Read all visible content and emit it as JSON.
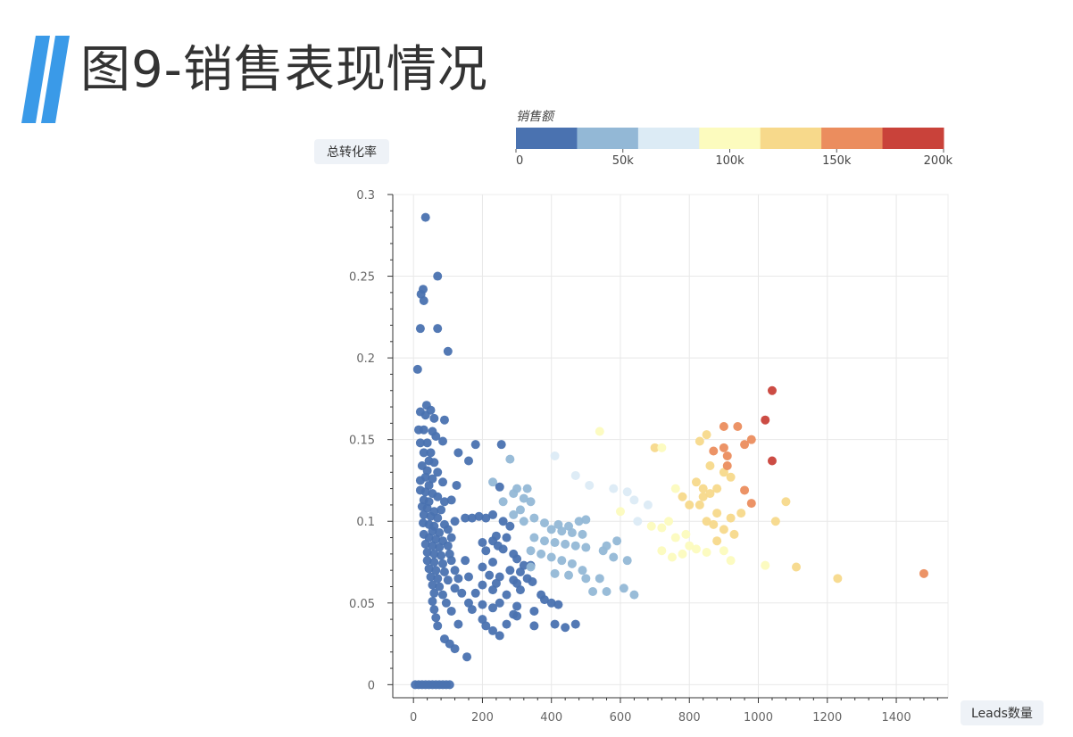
{
  "page": {
    "title": "图9-销售表现情况"
  },
  "chart_data": {
    "type": "scatter",
    "title": "图9-销售表现情况",
    "xlabel": "Leads数量",
    "ylabel": "总转化率",
    "xlim": [
      -60,
      1550
    ],
    "ylim": [
      -0.008,
      0.3
    ],
    "xticks": [
      0,
      200,
      400,
      600,
      800,
      1000,
      1200,
      1400
    ],
    "yticks": [
      0,
      0.05,
      0.1,
      0.15,
      0.2,
      0.25,
      0.3
    ],
    "ytick_labels": [
      "0",
      "0.05",
      "0.1",
      "0.15",
      "0.2",
      "0.25",
      "0.3"
    ],
    "grid": true,
    "colorbar": {
      "title": "销售额",
      "range": [
        0,
        200000
      ],
      "tick_values": [
        0,
        50000,
        100000,
        150000,
        200000
      ],
      "tick_labels": [
        "0",
        "50k",
        "100k",
        "150k",
        "200k"
      ],
      "colors": [
        "#4a72b0",
        "#93b8d6",
        "#dcebf5",
        "#fcfbbe",
        "#f7d98b",
        "#eb8d5e",
        "#c9423a"
      ]
    },
    "points": [
      [
        35,
        0.286
      ],
      [
        70,
        0.25
      ],
      [
        28,
        0.242
      ],
      [
        22,
        0.239
      ],
      [
        30,
        0.235
      ],
      [
        20,
        0.218
      ],
      [
        70,
        0.218
      ],
      [
        100,
        0.204
      ],
      [
        12,
        0.193
      ],
      [
        38,
        0.171
      ],
      [
        50,
        0.168
      ],
      [
        20,
        0.167
      ],
      [
        35,
        0.165
      ],
      [
        60,
        0.163
      ],
      [
        90,
        0.162
      ],
      [
        15,
        0.156
      ],
      [
        30,
        0.156
      ],
      [
        55,
        0.155
      ],
      [
        65,
        0.152
      ],
      [
        20,
        0.148
      ],
      [
        40,
        0.148
      ],
      [
        85,
        0.149
      ],
      [
        180,
        0.147
      ],
      [
        30,
        0.142
      ],
      [
        50,
        0.142
      ],
      [
        130,
        0.142
      ],
      [
        45,
        0.137
      ],
      [
        60,
        0.136
      ],
      [
        160,
        0.137
      ],
      [
        25,
        0.134
      ],
      [
        40,
        0.131
      ],
      [
        70,
        0.13
      ],
      [
        35,
        0.127
      ],
      [
        55,
        0.126
      ],
      [
        20,
        0.125
      ],
      [
        45,
        0.122
      ],
      [
        85,
        0.124
      ],
      [
        125,
        0.122
      ],
      [
        20,
        0.119
      ],
      [
        35,
        0.118
      ],
      [
        55,
        0.117
      ],
      [
        70,
        0.115
      ],
      [
        30,
        0.113
      ],
      [
        45,
        0.112
      ],
      [
        90,
        0.112
      ],
      [
        110,
        0.113
      ],
      [
        25,
        0.109
      ],
      [
        40,
        0.108
      ],
      [
        60,
        0.106
      ],
      [
        80,
        0.107
      ],
      [
        30,
        0.104
      ],
      [
        50,
        0.103
      ],
      [
        70,
        0.102
      ],
      [
        150,
        0.102
      ],
      [
        170,
        0.102
      ],
      [
        190,
        0.103
      ],
      [
        210,
        0.102
      ],
      [
        230,
        0.104
      ],
      [
        28,
        0.099
      ],
      [
        45,
        0.098
      ],
      [
        60,
        0.097
      ],
      [
        90,
        0.098
      ],
      [
        120,
        0.1
      ],
      [
        260,
        0.1
      ],
      [
        280,
        0.097
      ],
      [
        55,
        0.094
      ],
      [
        75,
        0.093
      ],
      [
        100,
        0.095
      ],
      [
        30,
        0.092
      ],
      [
        45,
        0.09
      ],
      [
        65,
        0.089
      ],
      [
        85,
        0.088
      ],
      [
        110,
        0.09
      ],
      [
        240,
        0.091
      ],
      [
        270,
        0.09
      ],
      [
        35,
        0.086
      ],
      [
        55,
        0.085
      ],
      [
        75,
        0.084
      ],
      [
        100,
        0.085
      ],
      [
        200,
        0.087
      ],
      [
        230,
        0.088
      ],
      [
        245,
        0.085
      ],
      [
        40,
        0.081
      ],
      [
        60,
        0.08
      ],
      [
        80,
        0.079
      ],
      [
        105,
        0.08
      ],
      [
        210,
        0.082
      ],
      [
        260,
        0.083
      ],
      [
        290,
        0.08
      ],
      [
        40,
        0.076
      ],
      [
        60,
        0.075
      ],
      [
        85,
        0.074
      ],
      [
        110,
        0.076
      ],
      [
        150,
        0.076
      ],
      [
        230,
        0.075
      ],
      [
        300,
        0.077
      ],
      [
        320,
        0.073
      ],
      [
        340,
        0.073
      ],
      [
        45,
        0.071
      ],
      [
        65,
        0.07
      ],
      [
        90,
        0.069
      ],
      [
        120,
        0.07
      ],
      [
        200,
        0.072
      ],
      [
        280,
        0.07
      ],
      [
        310,
        0.069
      ],
      [
        50,
        0.066
      ],
      [
        70,
        0.065
      ],
      [
        100,
        0.064
      ],
      [
        130,
        0.065
      ],
      [
        160,
        0.066
      ],
      [
        220,
        0.067
      ],
      [
        250,
        0.066
      ],
      [
        290,
        0.064
      ],
      [
        330,
        0.065
      ],
      [
        55,
        0.061
      ],
      [
        75,
        0.06
      ],
      [
        120,
        0.059
      ],
      [
        200,
        0.061
      ],
      [
        240,
        0.062
      ],
      [
        300,
        0.062
      ],
      [
        345,
        0.063
      ],
      [
        60,
        0.056
      ],
      [
        85,
        0.055
      ],
      [
        140,
        0.056
      ],
      [
        180,
        0.056
      ],
      [
        230,
        0.058
      ],
      [
        270,
        0.055
      ],
      [
        310,
        0.058
      ],
      [
        370,
        0.055
      ],
      [
        55,
        0.051
      ],
      [
        95,
        0.05
      ],
      [
        160,
        0.05
      ],
      [
        200,
        0.049
      ],
      [
        250,
        0.05
      ],
      [
        300,
        0.048
      ],
      [
        380,
        0.052
      ],
      [
        400,
        0.05
      ],
      [
        420,
        0.049
      ],
      [
        60,
        0.046
      ],
      [
        110,
        0.045
      ],
      [
        170,
        0.046
      ],
      [
        230,
        0.047
      ],
      [
        290,
        0.043
      ],
      [
        350,
        0.045
      ],
      [
        65,
        0.041
      ],
      [
        200,
        0.04
      ],
      [
        300,
        0.042
      ],
      [
        70,
        0.036
      ],
      [
        130,
        0.037
      ],
      [
        210,
        0.036
      ],
      [
        230,
        0.033
      ],
      [
        270,
        0.037
      ],
      [
        350,
        0.036
      ],
      [
        410,
        0.037
      ],
      [
        440,
        0.035
      ],
      [
        470,
        0.037
      ],
      [
        250,
        0.03
      ],
      [
        90,
        0.028
      ],
      [
        105,
        0.025
      ],
      [
        120,
        0.022
      ],
      [
        155,
        0.017
      ],
      [
        5,
        0
      ],
      [
        15,
        0
      ],
      [
        25,
        0
      ],
      [
        35,
        0
      ],
      [
        45,
        0
      ],
      [
        55,
        0
      ],
      [
        65,
        0
      ],
      [
        75,
        0
      ],
      [
        85,
        0
      ],
      [
        95,
        0
      ],
      [
        105,
        0
      ],
      [
        255,
        0.147
      ],
      [
        280,
        0.138
      ],
      [
        230,
        0.124
      ],
      [
        250,
        0.121
      ],
      [
        300,
        0.12
      ],
      [
        330,
        0.12
      ],
      [
        290,
        0.117
      ],
      [
        320,
        0.114
      ],
      [
        340,
        0.112
      ],
      [
        260,
        0.112
      ],
      [
        310,
        0.107
      ],
      [
        290,
        0.104
      ],
      [
        350,
        0.102
      ],
      [
        320,
        0.1
      ],
      [
        380,
        0.099
      ],
      [
        420,
        0.098
      ],
      [
        450,
        0.097
      ],
      [
        480,
        0.1
      ],
      [
        500,
        0.101
      ],
      [
        400,
        0.095
      ],
      [
        430,
        0.094
      ],
      [
        460,
        0.093
      ],
      [
        490,
        0.092
      ],
      [
        350,
        0.09
      ],
      [
        380,
        0.088
      ],
      [
        410,
        0.087
      ],
      [
        440,
        0.086
      ],
      [
        470,
        0.085
      ],
      [
        500,
        0.084
      ],
      [
        560,
        0.085
      ],
      [
        590,
        0.088
      ],
      [
        340,
        0.082
      ],
      [
        370,
        0.08
      ],
      [
        400,
        0.078
      ],
      [
        430,
        0.076
      ],
      [
        460,
        0.074
      ],
      [
        490,
        0.07
      ],
      [
        550,
        0.082
      ],
      [
        580,
        0.078
      ],
      [
        620,
        0.076
      ],
      [
        340,
        0.072
      ],
      [
        410,
        0.068
      ],
      [
        450,
        0.067
      ],
      [
        500,
        0.065
      ],
      [
        540,
        0.065
      ],
      [
        520,
        0.057
      ],
      [
        560,
        0.057
      ],
      [
        610,
        0.059
      ],
      [
        640,
        0.055
      ],
      [
        410,
        0.14
      ],
      [
        470,
        0.128
      ],
      [
        510,
        0.122
      ],
      [
        580,
        0.12
      ],
      [
        620,
        0.118
      ],
      [
        640,
        0.113
      ],
      [
        680,
        0.11
      ],
      [
        600,
        0.106
      ],
      [
        650,
        0.1
      ],
      [
        690,
        0.097
      ],
      [
        720,
        0.096
      ],
      [
        740,
        0.1
      ],
      [
        760,
        0.09
      ],
      [
        790,
        0.092
      ],
      [
        720,
        0.082
      ],
      [
        750,
        0.078
      ],
      [
        780,
        0.08
      ],
      [
        800,
        0.085
      ],
      [
        820,
        0.083
      ],
      [
        850,
        0.081
      ],
      [
        900,
        0.082
      ],
      [
        920,
        0.076
      ],
      [
        1020,
        0.073
      ],
      [
        540,
        0.155
      ],
      [
        700,
        0.145
      ],
      [
        720,
        0.145
      ],
      [
        760,
        0.12
      ],
      [
        780,
        0.115
      ],
      [
        800,
        0.11
      ],
      [
        840,
        0.115
      ],
      [
        880,
        0.12
      ],
      [
        850,
        0.1
      ],
      [
        870,
        0.098
      ],
      [
        900,
        0.095
      ],
      [
        920,
        0.102
      ],
      [
        950,
        0.105
      ],
      [
        1050,
        0.1
      ],
      [
        880,
        0.088
      ],
      [
        1110,
        0.072
      ],
      [
        1230,
        0.065
      ],
      [
        820,
        0.124
      ],
      [
        840,
        0.12
      ],
      [
        860,
        0.134
      ],
      [
        900,
        0.13
      ],
      [
        920,
        0.127
      ],
      [
        960,
        0.119
      ],
      [
        980,
        0.111
      ],
      [
        1080,
        0.112
      ],
      [
        860,
        0.117
      ],
      [
        830,
        0.11
      ],
      [
        880,
        0.105
      ],
      [
        930,
        0.092
      ],
      [
        830,
        0.149
      ],
      [
        850,
        0.153
      ],
      [
        870,
        0.143
      ],
      [
        910,
        0.134
      ],
      [
        1480,
        0.068
      ],
      [
        900,
        0.158
      ],
      [
        940,
        0.158
      ],
      [
        900,
        0.145
      ],
      [
        910,
        0.14
      ],
      [
        960,
        0.147
      ],
      [
        980,
        0.15
      ],
      [
        1040,
        0.137
      ],
      [
        1020,
        0.162
      ],
      [
        1040,
        0.18
      ]
    ],
    "sales_values": [
      3000,
      1500,
      1200,
      1000,
      800,
      1200,
      1500,
      2000,
      800,
      2500,
      3000,
      1000,
      2000,
      3000,
      4000,
      1000,
      2000,
      3000,
      3500,
      1000,
      2000,
      5000,
      12000,
      2000,
      3000,
      10000,
      2500,
      3000,
      12000,
      1000,
      2000,
      4000,
      2000,
      3000,
      1000,
      2500,
      4000,
      8000,
      1000,
      2000,
      3000,
      4000,
      2000,
      3000,
      5000,
      6000,
      1000,
      2000,
      3000,
      4000,
      2000,
      3000,
      4000,
      9000,
      11000,
      13000,
      15000,
      17000,
      1500,
      2500,
      3000,
      5000,
      7000,
      18000,
      20000,
      3000,
      4000,
      6000,
      1500,
      2500,
      3000,
      4000,
      6000,
      16000,
      18000,
      2000,
      3000,
      4000,
      5000,
      12000,
      16000,
      18000,
      20000,
      2000,
      3000,
      4000,
      6000,
      14000,
      16000,
      19000,
      2000,
      3000,
      4000,
      6000,
      9000,
      14000,
      20000,
      22000,
      24000,
      2000,
      3000,
      4500,
      6000,
      12000,
      17000,
      19000,
      2000,
      3000,
      5000,
      7000,
      8000,
      12000,
      14000,
      17000,
      20000,
      2000,
      3000,
      6000,
      10000,
      13000,
      17000,
      21000,
      2000,
      3000,
      7000,
      9000,
      12000,
      15000,
      17000,
      22000,
      2000,
      4000,
      7000,
      10000,
      12000,
      15000,
      20000,
      22000,
      24000,
      2000,
      5000,
      7000,
      11000,
      14000,
      17000,
      2000,
      10000,
      15000,
      2000,
      5000,
      8000,
      9000,
      12000,
      16000,
      19000,
      20000,
      22000,
      10000,
      2000,
      3000,
      4000,
      6000,
      0,
      0,
      0,
      0,
      0,
      0,
      0,
      0,
      0,
      0,
      0,
      35000,
      32000,
      28000,
      30000,
      34000,
      38000,
      33000,
      36000,
      37000,
      30000,
      34000,
      32000,
      38000,
      35000,
      41000,
      45000,
      47000,
      50000,
      52000,
      42000,
      45000,
      47000,
      49000,
      37000,
      40000,
      42000,
      44000,
      46000,
      48000,
      52000,
      54000,
      36000,
      38000,
      40000,
      42000,
      44000,
      46000,
      52000,
      54000,
      57000,
      36000,
      42000,
      44000,
      47000,
      50000,
      49000,
      52000,
      56000,
      58000,
      70000,
      75000,
      72000,
      80000,
      82000,
      84000,
      86000,
      83000,
      86000,
      88000,
      90000,
      92000,
      94000,
      96000,
      88000,
      92000,
      94000,
      96000,
      98000,
      100000,
      105000,
      107000,
      110000,
      115000,
      110000,
      112000,
      115000,
      118000,
      120000,
      125000,
      124000,
      122000,
      124000,
      126000,
      128000,
      130000,
      125000,
      130000,
      135000,
      128000,
      132000,
      135000,
      138000,
      140000,
      145000,
      148000,
      135000,
      125000,
      125000,
      125000,
      138000,
      140000,
      142000,
      145000,
      148000,
      150000,
      160000,
      165000,
      165000,
      162000,
      160000,
      165000,
      178000,
      200000,
      205000
    ]
  }
}
